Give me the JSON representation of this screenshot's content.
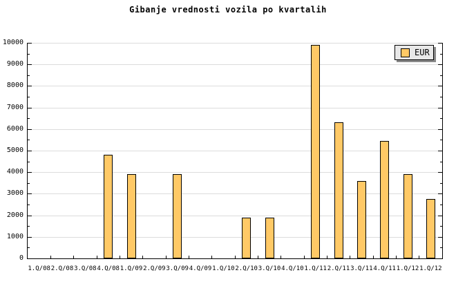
{
  "title": "Gibanje vrednosti vozila po kvartalih",
  "legend": {
    "label": "EUR"
  },
  "colors": {
    "background": "#ffffff",
    "bar_fill": "#FFC966",
    "bar_border": "#000000",
    "grid": "#DCDCDC",
    "axis": "#000000",
    "legend_bg": "#E8E8E8",
    "legend_shadow": "#8a8a8a",
    "text": "#000000"
  },
  "y_axis": {
    "tick_labels": [
      "0",
      "1000",
      "2000",
      "3000",
      "4000",
      "5000",
      "6000",
      "7000",
      "8000",
      "9000",
      "10000"
    ],
    "major_step": 1000,
    "minor_step": 500
  },
  "chart_data": {
    "type": "bar",
    "title": "Gibanje vrednosti vozila po kvartalih",
    "categories": [
      "1.Q/08",
      "2.Q/08",
      "3.Q/08",
      "4.Q/08",
      "1.Q/09",
      "2.Q/09",
      "3.Q/09",
      "4.Q/09",
      "1.Q/10",
      "2.Q/10",
      "3.Q/10",
      "4.Q/10",
      "1.Q/11",
      "2.Q/11",
      "3.Q/11",
      "4.Q/11",
      "1.Q/12",
      "1.Q/12"
    ],
    "series": [
      {
        "name": "EUR",
        "values": [
          0,
          0,
          0,
          4800,
          3900,
          0,
          3900,
          0,
          0,
          1900,
          1900,
          0,
          9900,
          6300,
          3600,
          5450,
          3900,
          2750
        ]
      }
    ],
    "xlabel": "",
    "ylabel": "",
    "ylim": [
      0,
      10000
    ],
    "grid": "horizontal-major",
    "legend_position": "top-right"
  }
}
